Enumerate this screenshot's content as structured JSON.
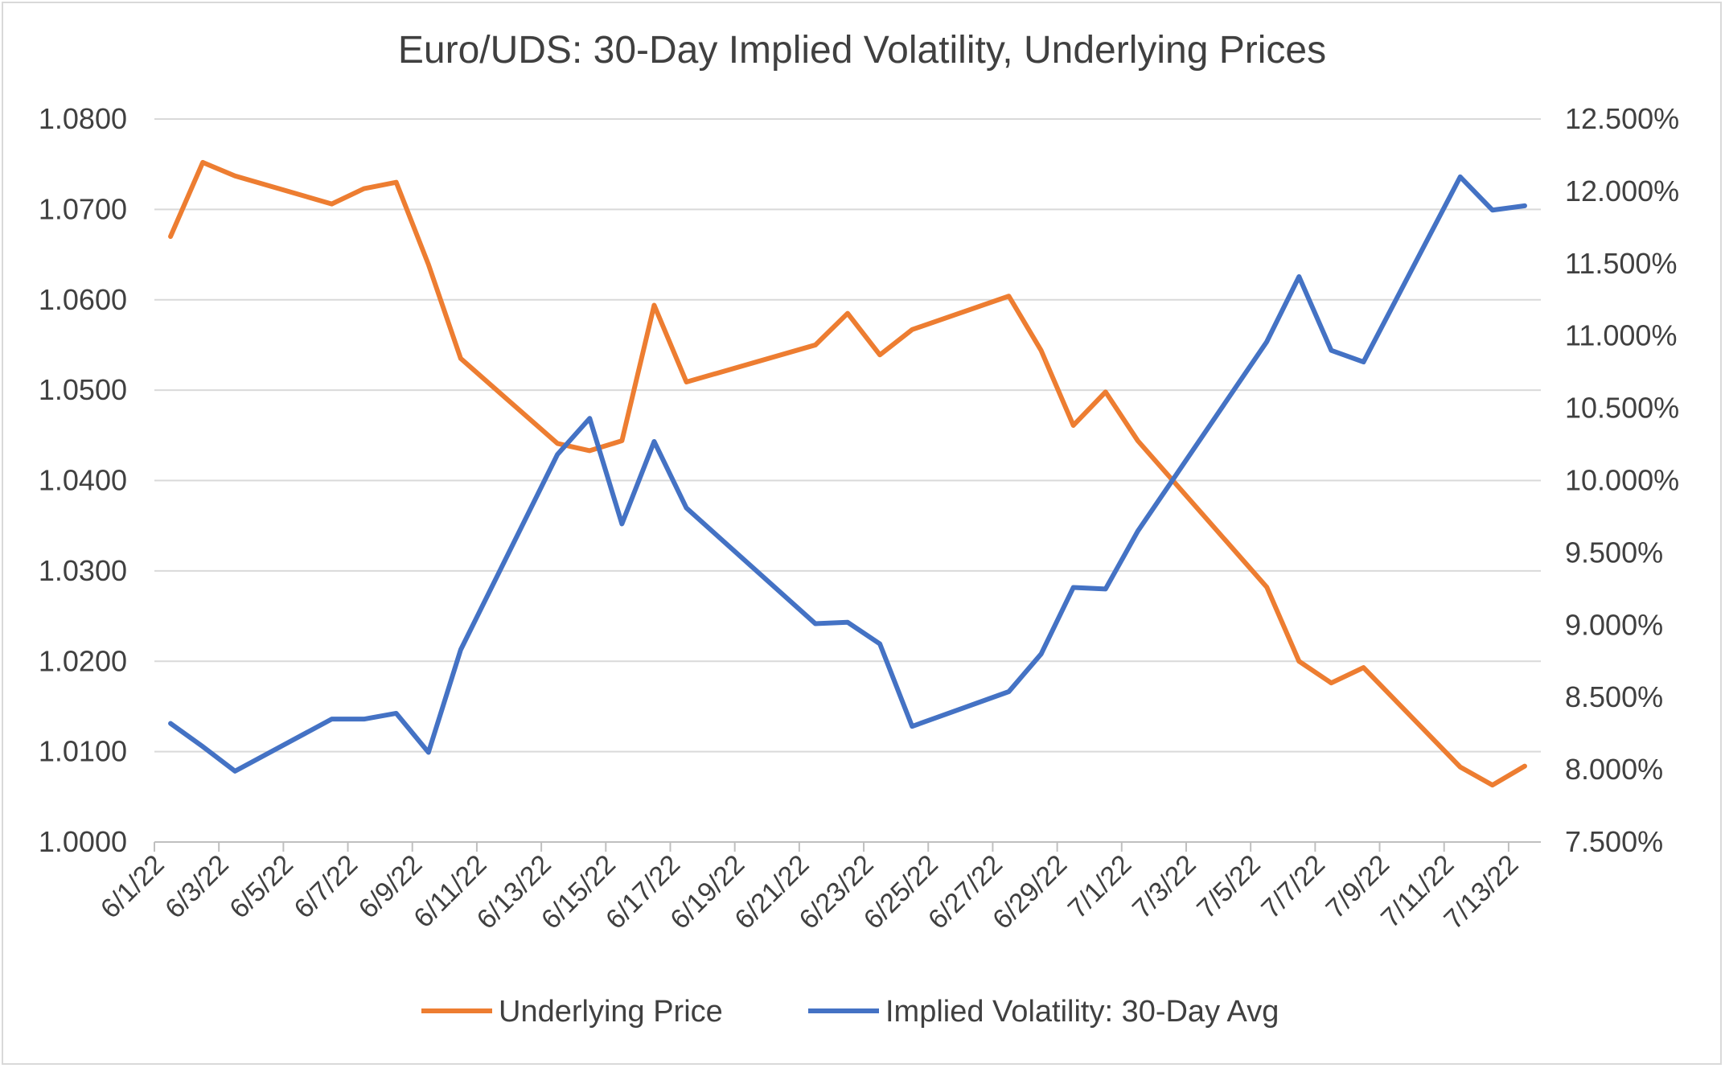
{
  "chart_data": {
    "type": "line",
    "title": "Euro/UDS: 30-Day Implied Volatility, Underlying Prices",
    "xlabel": "",
    "ylabel_left": "",
    "ylabel_right": "",
    "x_tick_labels": [
      "6/1/22",
      "6/3/22",
      "6/5/22",
      "6/7/22",
      "6/9/22",
      "6/11/22",
      "6/13/22",
      "6/15/22",
      "6/17/22",
      "6/19/22",
      "6/21/22",
      "6/23/22",
      "6/25/22",
      "6/27/22",
      "6/29/22",
      "7/1/22",
      "7/3/22",
      "7/5/22",
      "7/7/22",
      "7/9/22",
      "7/11/22",
      "7/13/22"
    ],
    "y_left_ticks": [
      "1.0000",
      "1.0100",
      "1.0200",
      "1.0300",
      "1.0400",
      "1.0500",
      "1.0600",
      "1.0700",
      "1.0800"
    ],
    "y_right_ticks": [
      "7.500%",
      "8.000%",
      "8.500%",
      "9.000%",
      "9.500%",
      "10.000%",
      "10.500%",
      "11.000%",
      "11.500%",
      "12.000%",
      "12.500%"
    ],
    "ylim_left": [
      1.0,
      1.08
    ],
    "ylim_right": [
      7.5,
      12.5
    ],
    "x_range": [
      "6/1/22",
      "7/13/22"
    ],
    "grid": true,
    "legend_position": "bottom",
    "x": [
      "6/1/22",
      "6/2/22",
      "6/3/22",
      "6/6/22",
      "6/7/22",
      "6/8/22",
      "6/9/22",
      "6/10/22",
      "6/13/22",
      "6/14/22",
      "6/15/22",
      "6/16/22",
      "6/17/22",
      "6/21/22",
      "6/22/22",
      "6/23/22",
      "6/24/22",
      "6/27/22",
      "6/28/22",
      "6/29/22",
      "6/30/22",
      "7/1/22",
      "7/5/22",
      "7/6/22",
      "7/7/22",
      "7/8/22",
      "7/11/22",
      "7/12/22",
      "7/13/22"
    ],
    "day_index": [
      0,
      1,
      2,
      5,
      6,
      7,
      8,
      9,
      12,
      13,
      14,
      15,
      16,
      20,
      21,
      22,
      23,
      26,
      27,
      28,
      29,
      30,
      34,
      35,
      36,
      37,
      40,
      41,
      42
    ],
    "series": [
      {
        "name": "Underlying Price",
        "axis": "left",
        "color": "#ED7D31",
        "values": [
          1.067,
          1.0752,
          1.0737,
          1.0706,
          1.0723,
          1.073,
          1.0639,
          1.0535,
          1.0441,
          1.0433,
          1.0444,
          1.0594,
          1.0509,
          1.055,
          1.0585,
          1.0539,
          1.0567,
          1.0604,
          1.0544,
          1.0461,
          1.0498,
          1.0444,
          1.0282,
          1.02,
          1.0176,
          1.0193,
          1.0083,
          1.0063,
          1.0084
        ]
      },
      {
        "name": "Implied Volatility: 30-Day Avg",
        "axis": "right",
        "color": "#4472C4",
        "values": [
          8.32,
          8.16,
          7.99,
          8.35,
          8.35,
          8.39,
          8.12,
          8.83,
          10.18,
          10.43,
          9.7,
          10.27,
          9.81,
          9.01,
          9.02,
          8.87,
          8.3,
          8.54,
          8.8,
          9.26,
          9.25,
          9.65,
          10.96,
          11.41,
          10.9,
          10.82,
          12.1,
          11.87,
          11.9
        ]
      }
    ]
  }
}
